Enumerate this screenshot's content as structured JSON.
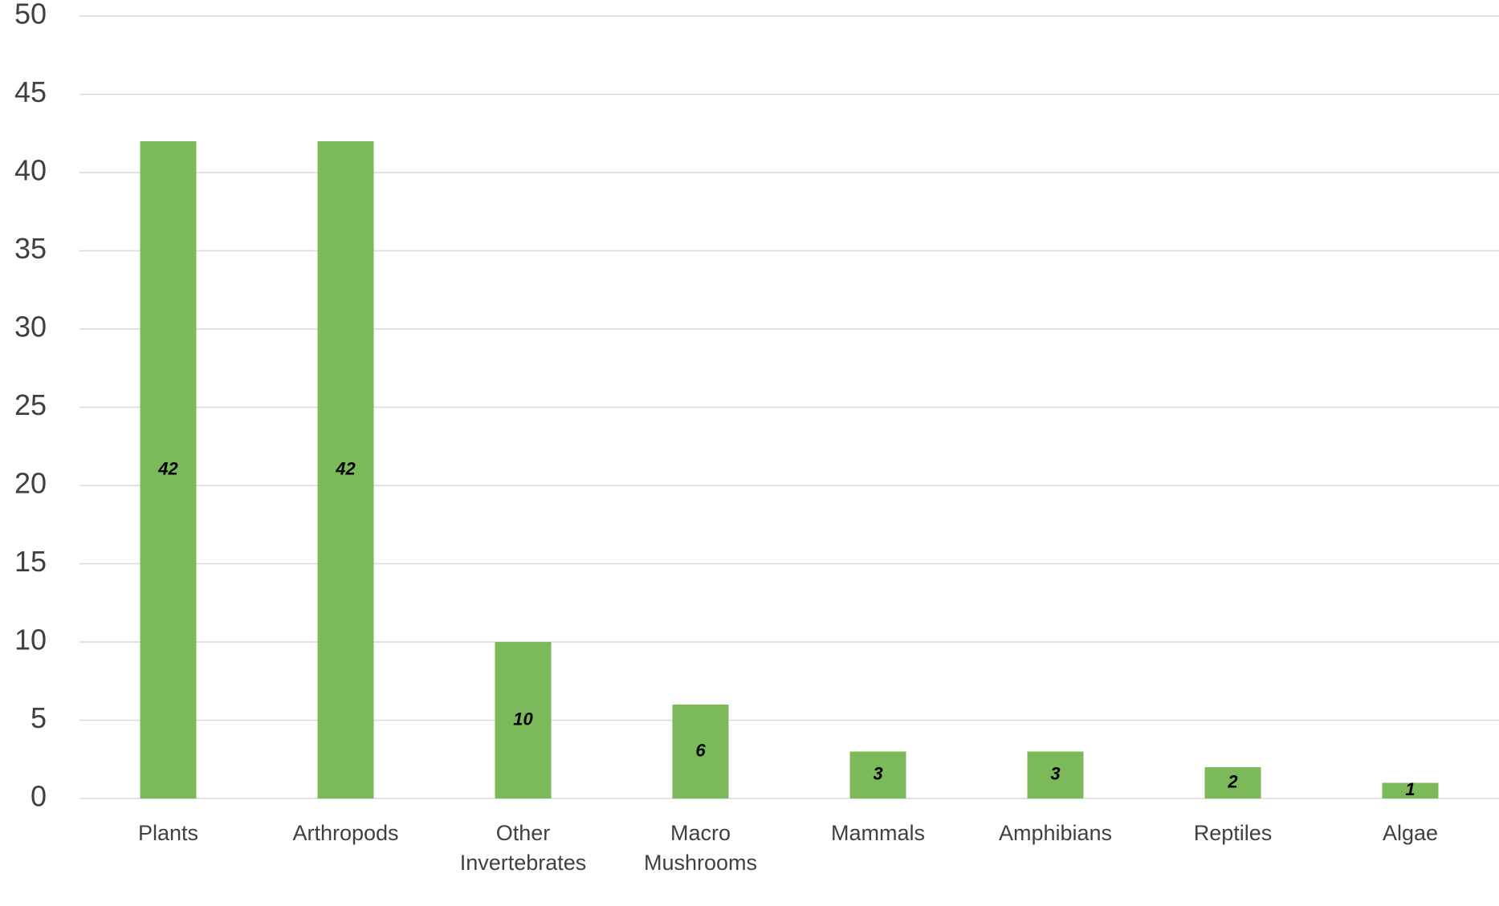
{
  "chart_data": {
    "type": "bar",
    "categories": [
      "Plants",
      "Arthropods",
      "Other Invertebrates",
      "Macro Mushrooms",
      "Mammals",
      "Amphibians",
      "Reptiles",
      "Algae"
    ],
    "values": [
      42,
      42,
      10,
      6,
      3,
      3,
      2,
      1
    ],
    "color": "#7cb95b",
    "ylim": [
      0,
      50
    ],
    "yticks": [
      0,
      5,
      10,
      15,
      20,
      25,
      30,
      35,
      40,
      45,
      50
    ],
    "grid": true
  }
}
